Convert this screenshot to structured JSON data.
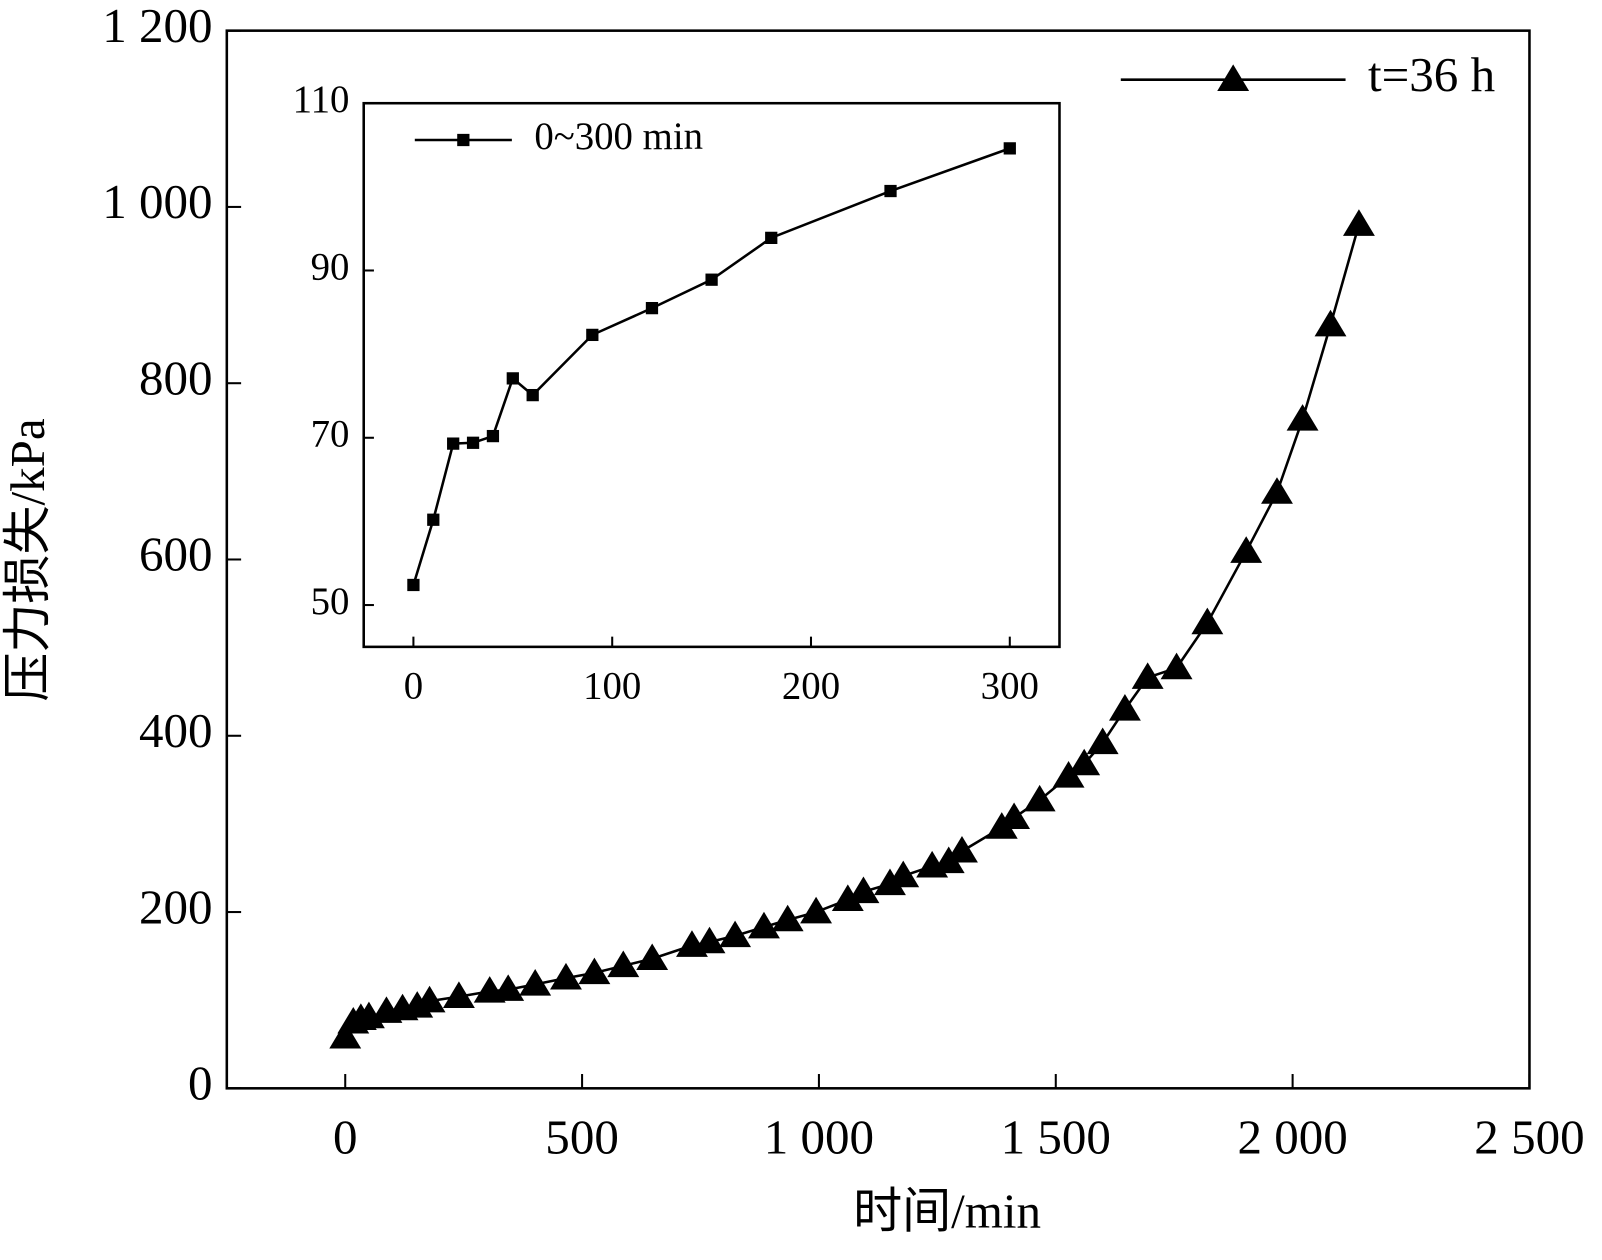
{
  "chart_data": [
    {
      "type": "line",
      "x_label": "时间/min",
      "y_label": "压力损失/kPa",
      "xlim": [
        -250,
        2500
      ],
      "ylim": [
        0,
        1200
      ],
      "xticks": [
        0,
        500,
        {
          "value": 1000,
          "label": "1 000"
        },
        {
          "value": 1500,
          "label": "1 500"
        },
        {
          "value": 2000,
          "label": "2 000"
        },
        {
          "value": 2500,
          "label": "2 500"
        }
      ],
      "yticks": [
        0,
        200,
        400,
        600,
        800,
        {
          "value": 1000,
          "label": "1 000"
        },
        {
          "value": 1200,
          "label": "1 200"
        }
      ],
      "marker": "triangle",
      "legend": "upper right",
      "series": [
        {
          "name": "t=36 h",
          "color": "#000000",
          "x": [
            0,
            17,
            33,
            50,
            87,
            121,
            152,
            178,
            240,
            305,
            344,
            401,
            466,
            526,
            587,
            648,
            732,
            769,
            823,
            884,
            934,
            994,
            1061,
            1094,
            1150,
            1178,
            1239,
            1274,
            1302,
            1386,
            1412,
            1466,
            1527,
            1560,
            1599,
            1646,
            1694,
            1755,
            1820,
            1902,
            1967,
            2021,
            2080,
            2140
          ],
          "values": [
            58,
            75,
            79,
            81,
            87,
            90,
            93,
            99,
            104,
            110,
            112,
            118,
            125,
            131,
            139,
            147,
            162,
            166,
            173,
            183,
            191,
            200,
            214,
            223,
            232,
            241,
            252,
            257,
            269,
            296,
            307,
            327,
            354,
            368,
            392,
            430,
            466,
            477,
            528,
            609,
            676,
            759,
            866,
            980
          ]
        }
      ]
    },
    {
      "type": "line",
      "xlim": [
        -25,
        325
      ],
      "ylim": [
        45,
        110
      ],
      "xticks": [
        0,
        100,
        200,
        300
      ],
      "yticks": [
        50,
        70,
        90,
        110
      ],
      "marker": "square",
      "legend": "upper left",
      "series": [
        {
          "name": "0~300 min",
          "color": "#000000",
          "x": [
            0,
            10,
            20,
            30,
            40,
            50,
            60,
            90,
            120,
            150,
            180,
            240,
            300
          ],
          "values": [
            52.4,
            60.2,
            69.3,
            69.4,
            70.2,
            77.1,
            75.1,
            82.3,
            85.5,
            88.9,
            93.9,
            99.5,
            104.6
          ]
        }
      ]
    }
  ]
}
